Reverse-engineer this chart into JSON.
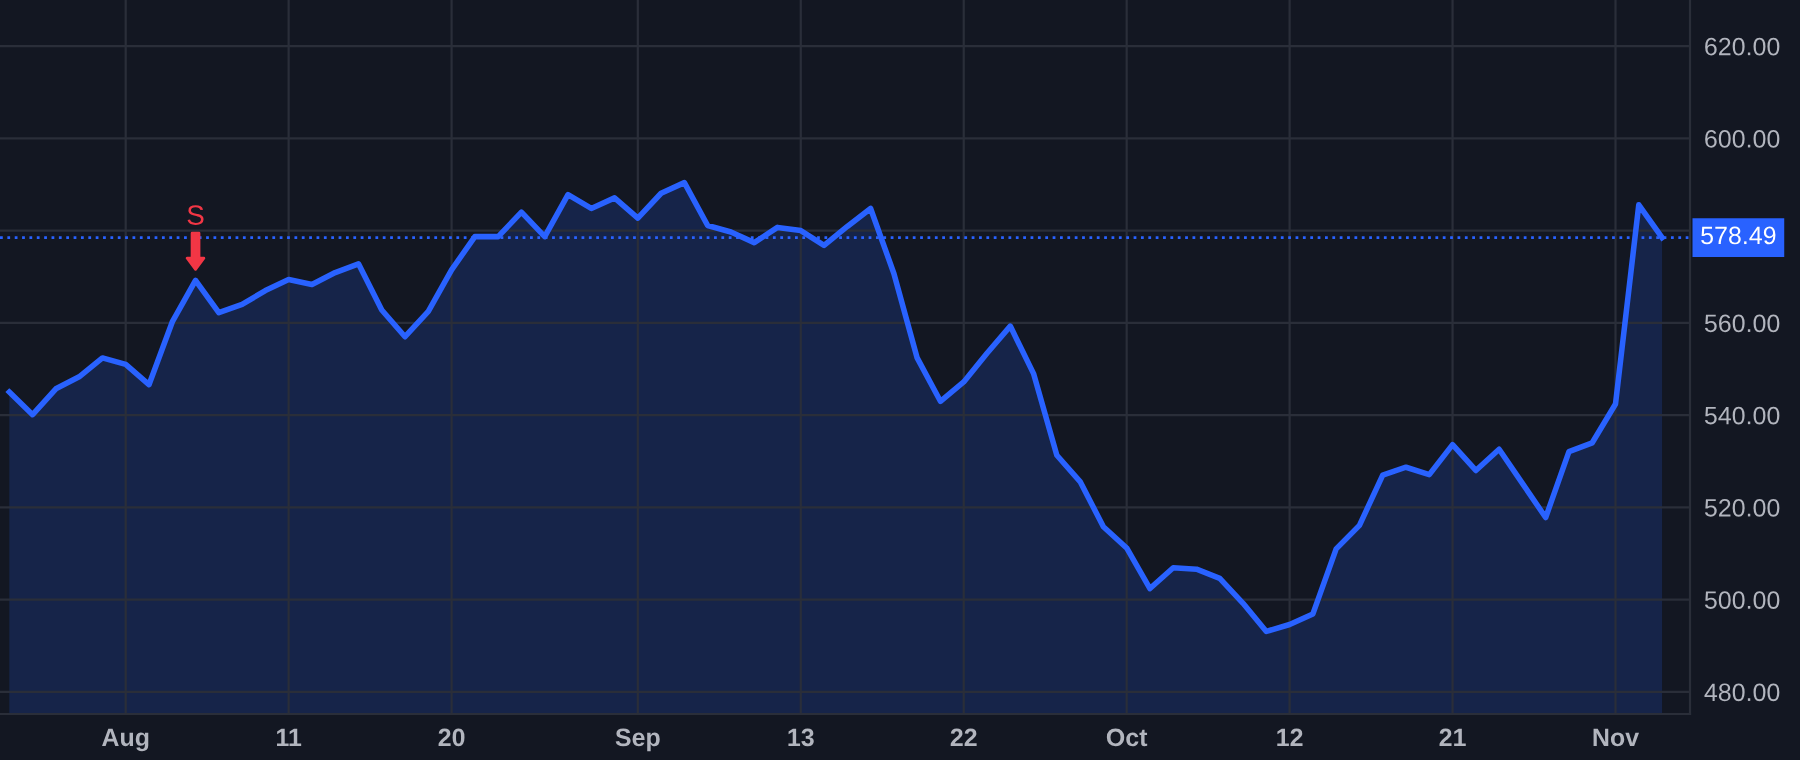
{
  "chart_data": {
    "type": "area",
    "categories": [
      null,
      null,
      null,
      null,
      null,
      "Aug",
      null,
      null,
      null,
      null,
      null,
      null,
      "11",
      null,
      null,
      null,
      null,
      null,
      null,
      "20",
      null,
      null,
      null,
      null,
      null,
      null,
      null,
      "Sep",
      null,
      null,
      null,
      null,
      null,
      null,
      "13",
      null,
      null,
      null,
      null,
      null,
      null,
      "22",
      null,
      null,
      null,
      null,
      null,
      null,
      "Oct",
      null,
      null,
      null,
      null,
      null,
      null,
      "12",
      null,
      null,
      null,
      null,
      null,
      null,
      "21",
      null,
      null,
      null,
      null,
      null,
      null,
      "Nov",
      null,
      null
    ],
    "series": [
      {
        "color": "#2962ff",
        "values": [
          545.0,
          540.1,
          545.7,
          548.3,
          552.4,
          551.0,
          546.6,
          560.2,
          569.2,
          562.2,
          564.0,
          567.0,
          569.4,
          568.3,
          570.9,
          572.8,
          562.8,
          557.0,
          562.5,
          571.5,
          578.7,
          578.7,
          584.0,
          578.7,
          587.8,
          584.8,
          587.1,
          582.7,
          588.1,
          590.4,
          581.1,
          579.7,
          577.4,
          580.7,
          580.0,
          576.8,
          580.9,
          584.8,
          570.7,
          552.4,
          543.0,
          547.2,
          553.4,
          559.3,
          549.0,
          531.3,
          525.6,
          515.8,
          511.2,
          502.4,
          506.9,
          506.6,
          504.6,
          499.2,
          493.1,
          494.6,
          496.9,
          511.0,
          516.1,
          527.0,
          528.7,
          527.1,
          533.6,
          528.0,
          532.6,
          525.2,
          517.8,
          532.1,
          534.0,
          542.4,
          585.6,
          578.5
        ]
      }
    ],
    "ylim": [
      475.2,
      630
    ],
    "yticks": [
      {
        "value": 480,
        "label": "480.00"
      },
      {
        "value": 500,
        "label": "500.00"
      },
      {
        "value": 520,
        "label": "520.00"
      },
      {
        "value": 540,
        "label": "540.00"
      },
      {
        "value": 560,
        "label": "560.00"
      },
      {
        "value": 580,
        "label": null
      },
      {
        "value": 600,
        "label": "600.00"
      },
      {
        "value": 620,
        "label": "620.00"
      }
    ],
    "ref_lines": [
      {
        "axis": "y",
        "value": 578.49,
        "label": "578.49",
        "color": "#2962ff",
        "line_style": "dotted"
      }
    ],
    "annotations": [
      {
        "text": "S",
        "y": 569.2
      }
    ],
    "grid": true
  }
}
